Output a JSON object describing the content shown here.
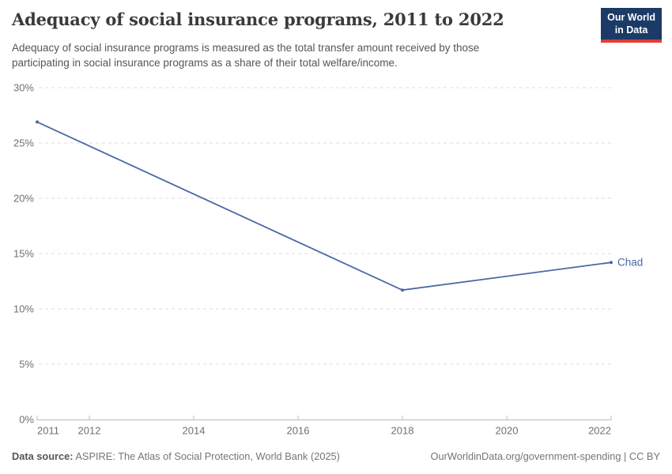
{
  "header": {
    "title": "Adequacy of social insurance programs, 2011 to 2022",
    "subtitle": "Adequacy of social insurance programs is measured as the total transfer amount received by those participating in social insurance programs as a share of their total welfare/income."
  },
  "logo": {
    "line1": "Our World",
    "line2": "in Data",
    "bg_color": "#1b3a66",
    "stripe_color": "#e23d33"
  },
  "chart_data": {
    "type": "line",
    "title": "Adequacy of social insurance programs, 2011 to 2022",
    "x": [
      2011,
      2018,
      2022
    ],
    "series": [
      {
        "name": "Chad",
        "color": "#4a68a8",
        "values": [
          26.9,
          11.7,
          14.2
        ]
      }
    ],
    "xlim": [
      2011,
      2022
    ],
    "ylim": [
      0,
      30
    ],
    "xticks": [
      2011,
      2012,
      2014,
      2016,
      2018,
      2020,
      2022
    ],
    "yticks": [
      0,
      5,
      10,
      15,
      20,
      25,
      30
    ],
    "ytick_suffix": "%",
    "grid": "horizontal-dashed",
    "legend": "line-end-label"
  },
  "footer": {
    "source_label": "Data source:",
    "source_text": "ASPIRE: The Atlas of Social Protection, World Bank (2025)",
    "attribution": "OurWorldinData.org/government-spending | CC BY"
  }
}
